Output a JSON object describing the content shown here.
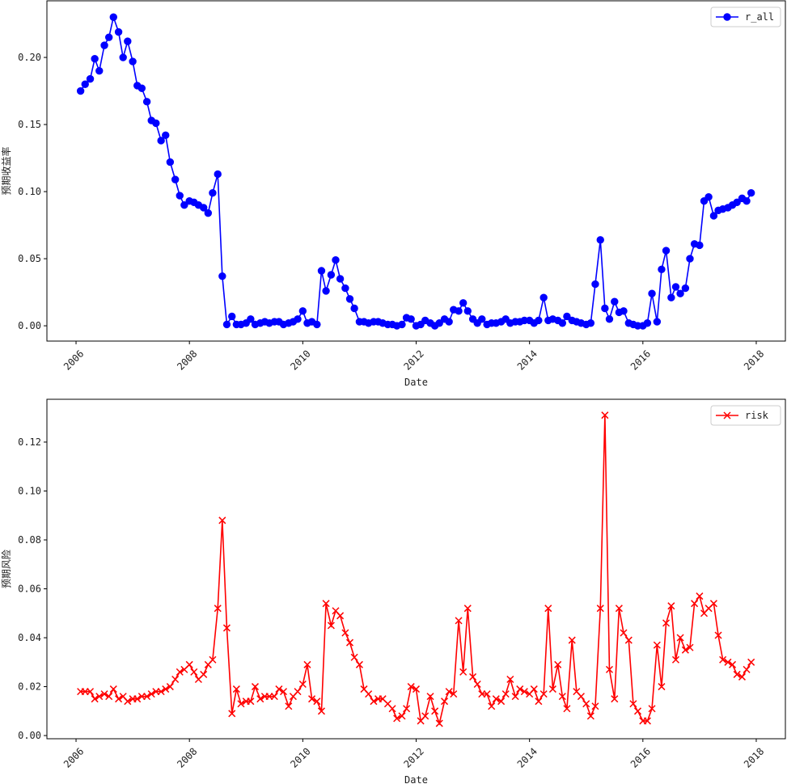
{
  "chart_data": [
    {
      "type": "line",
      "xlabel": "Date",
      "ylabel": "预期收益率",
      "legend": "upper right",
      "xlim": [
        2005.486,
        2018.514
      ],
      "ylim": [
        -0.0114,
        0.2422
      ],
      "xticks": [
        2006,
        2008,
        2010,
        2012,
        2014,
        2016,
        2018
      ],
      "yticks": [
        {
          "value": 0,
          "label": "0.00"
        },
        {
          "value": 0.05,
          "label": "0.05"
        },
        {
          "value": 0.1,
          "label": "0.10"
        },
        {
          "value": 0.15,
          "label": "0.15"
        },
        {
          "value": 0.2,
          "label": "0.20"
        }
      ],
      "x": [
        2006.08,
        2006.16,
        2006.25,
        2006.33,
        2006.41,
        2006.5,
        2006.58,
        2006.66,
        2006.75,
        2006.83,
        2006.91,
        2007,
        2007.08,
        2007.16,
        2007.25,
        2007.33,
        2007.41,
        2007.5,
        2007.58,
        2007.66,
        2007.75,
        2007.83,
        2007.91,
        2008,
        2008.08,
        2008.16,
        2008.25,
        2008.33,
        2008.41,
        2008.5,
        2008.58,
        2008.66,
        2008.75,
        2008.83,
        2008.91,
        2009,
        2009.08,
        2009.16,
        2009.25,
        2009.33,
        2009.41,
        2009.5,
        2009.58,
        2009.66,
        2009.75,
        2009.83,
        2009.91,
        2010,
        2010.08,
        2010.16,
        2010.25,
        2010.33,
        2010.41,
        2010.5,
        2010.58,
        2010.66,
        2010.75,
        2010.83,
        2010.91,
        2011,
        2011.08,
        2011.16,
        2011.25,
        2011.33,
        2011.41,
        2011.5,
        2011.58,
        2011.66,
        2011.75,
        2011.83,
        2011.91,
        2012,
        2012.08,
        2012.16,
        2012.25,
        2012.33,
        2012.41,
        2012.5,
        2012.58,
        2012.66,
        2012.75,
        2012.83,
        2012.91,
        2013,
        2013.08,
        2013.16,
        2013.25,
        2013.33,
        2013.41,
        2013.5,
        2013.58,
        2013.66,
        2013.75,
        2013.83,
        2013.91,
        2014,
        2014.08,
        2014.16,
        2014.25,
        2014.33,
        2014.41,
        2014.5,
        2014.58,
        2014.66,
        2014.75,
        2014.83,
        2014.91,
        2015,
        2015.08,
        2015.16,
        2015.25,
        2015.33,
        2015.41,
        2015.5,
        2015.58,
        2015.66,
        2015.75,
        2015.83,
        2015.91,
        2016,
        2016.08,
        2016.16,
        2016.25,
        2016.33,
        2016.41,
        2016.5,
        2016.58,
        2016.66,
        2016.75,
        2016.83,
        2016.91,
        2017,
        2017.08,
        2017.16,
        2017.25,
        2017.33,
        2017.41,
        2017.5,
        2017.58,
        2017.66,
        2017.75,
        2017.83,
        2017.91
      ],
      "series": [
        {
          "name": "r_all",
          "color": "#0000ff",
          "marker": "o",
          "values": [
            0.175,
            0.18,
            0.184,
            0.199,
            0.19,
            0.209,
            0.215,
            0.23,
            0.219,
            0.2,
            0.212,
            0.197,
            0.179,
            0.177,
            0.167,
            0.153,
            0.151,
            0.138,
            0.142,
            0.122,
            0.109,
            0.097,
            0.09,
            0.093,
            0.092,
            0.09,
            0.088,
            0.084,
            0.099,
            0.113,
            0.037,
            0.001,
            0.007,
            0.001,
            0.001,
            0.002,
            0.005,
            0.001,
            0.002,
            0.003,
            0.002,
            0.003,
            0.003,
            0.001,
            0.002,
            0.003,
            0.005,
            0.011,
            0.002,
            0.003,
            0.001,
            0.041,
            0.026,
            0.038,
            0.049,
            0.035,
            0.028,
            0.02,
            0.013,
            0.003,
            0.003,
            0.002,
            0.003,
            0.003,
            0.002,
            0.001,
            0.001,
            0.0,
            0.001,
            0.006,
            0.005,
            0.0,
            0.001,
            0.004,
            0.002,
            0.0,
            0.002,
            0.005,
            0.003,
            0.012,
            0.011,
            0.017,
            0.011,
            0.005,
            0.002,
            0.005,
            0.001,
            0.002,
            0.002,
            0.003,
            0.005,
            0.002,
            0.003,
            0.003,
            0.004,
            0.004,
            0.002,
            0.004,
            0.021,
            0.004,
            0.005,
            0.004,
            0.002,
            0.007,
            0.004,
            0.003,
            0.002,
            0.001,
            0.002,
            0.031,
            0.064,
            0.013,
            0.005,
            0.018,
            0.01,
            0.011,
            0.002,
            0.001,
            0.0,
            0.0,
            0.002,
            0.024,
            0.003,
            0.042,
            0.056,
            0.021,
            0.029,
            0.024,
            0.028,
            0.05,
            0.061,
            0.06,
            0.093,
            0.096,
            0.082,
            0.086,
            0.087,
            0.088,
            0.09,
            0.092,
            0.095,
            0.093,
            0.099
          ]
        }
      ]
    },
    {
      "type": "line",
      "xlabel": "Date",
      "ylabel": "预期风险",
      "legend": "upper right",
      "xlim": [
        2005.486,
        2018.514
      ],
      "ylim": [
        -0.0013,
        0.1375
      ],
      "xticks": [
        2006,
        2008,
        2010,
        2012,
        2014,
        2016,
        2018
      ],
      "yticks": [
        {
          "value": 0,
          "label": "0.00"
        },
        {
          "value": 0.02,
          "label": "0.02"
        },
        {
          "value": 0.04,
          "label": "0.04"
        },
        {
          "value": 0.06,
          "label": "0.06"
        },
        {
          "value": 0.08,
          "label": "0.08"
        },
        {
          "value": 0.1,
          "label": "0.10"
        },
        {
          "value": 0.12,
          "label": "0.12"
        }
      ],
      "x": [
        2006.08,
        2006.16,
        2006.25,
        2006.33,
        2006.41,
        2006.5,
        2006.58,
        2006.66,
        2006.75,
        2006.83,
        2006.91,
        2007,
        2007.08,
        2007.16,
        2007.25,
        2007.33,
        2007.41,
        2007.5,
        2007.58,
        2007.66,
        2007.75,
        2007.83,
        2007.91,
        2008,
        2008.08,
        2008.16,
        2008.25,
        2008.33,
        2008.41,
        2008.5,
        2008.58,
        2008.66,
        2008.75,
        2008.83,
        2008.91,
        2009,
        2009.08,
        2009.16,
        2009.25,
        2009.33,
        2009.41,
        2009.5,
        2009.58,
        2009.66,
        2009.75,
        2009.83,
        2009.91,
        2010,
        2010.08,
        2010.16,
        2010.25,
        2010.33,
        2010.41,
        2010.5,
        2010.58,
        2010.66,
        2010.75,
        2010.83,
        2010.91,
        2011,
        2011.08,
        2011.16,
        2011.25,
        2011.33,
        2011.41,
        2011.5,
        2011.58,
        2011.66,
        2011.75,
        2011.83,
        2011.91,
        2012,
        2012.08,
        2012.16,
        2012.25,
        2012.33,
        2012.41,
        2012.5,
        2012.58,
        2012.66,
        2012.75,
        2012.83,
        2012.91,
        2013,
        2013.08,
        2013.16,
        2013.25,
        2013.33,
        2013.41,
        2013.5,
        2013.58,
        2013.66,
        2013.75,
        2013.83,
        2013.91,
        2014,
        2014.08,
        2014.16,
        2014.25,
        2014.33,
        2014.41,
        2014.5,
        2014.58,
        2014.66,
        2014.75,
        2014.83,
        2014.91,
        2015,
        2015.08,
        2015.16,
        2015.25,
        2015.33,
        2015.41,
        2015.5,
        2015.58,
        2015.66,
        2015.75,
        2015.83,
        2015.91,
        2016,
        2016.08,
        2016.16,
        2016.25,
        2016.33,
        2016.41,
        2016.5,
        2016.58,
        2016.66,
        2016.75,
        2016.83,
        2016.91,
        2017,
        2017.08,
        2017.16,
        2017.25,
        2017.33,
        2017.41,
        2017.5,
        2017.58,
        2017.66,
        2017.75,
        2017.83,
        2017.91
      ],
      "series": [
        {
          "name": "risk",
          "color": "#ff0000",
          "marker": "x",
          "values": [
            0.018,
            0.018,
            0.018,
            0.015,
            0.016,
            0.017,
            0.016,
            0.019,
            0.015,
            0.016,
            0.014,
            0.015,
            0.015,
            0.016,
            0.016,
            0.017,
            0.018,
            0.018,
            0.019,
            0.02,
            0.023,
            0.026,
            0.027,
            0.029,
            0.026,
            0.023,
            0.025,
            0.029,
            0.031,
            0.052,
            0.088,
            0.044,
            0.009,
            0.019,
            0.013,
            0.014,
            0.014,
            0.02,
            0.015,
            0.016,
            0.016,
            0.016,
            0.019,
            0.018,
            0.012,
            0.016,
            0.018,
            0.021,
            0.029,
            0.015,
            0.014,
            0.01,
            0.054,
            0.045,
            0.051,
            0.049,
            0.042,
            0.038,
            0.032,
            0.029,
            0.019,
            0.017,
            0.014,
            0.015,
            0.015,
            0.013,
            0.011,
            0.007,
            0.008,
            0.011,
            0.02,
            0.019,
            0.006,
            0.008,
            0.016,
            0.01,
            0.005,
            0.014,
            0.018,
            0.017,
            0.047,
            0.026,
            0.052,
            0.024,
            0.021,
            0.017,
            0.017,
            0.012,
            0.015,
            0.014,
            0.017,
            0.023,
            0.016,
            0.019,
            0.018,
            0.017,
            0.019,
            0.014,
            0.017,
            0.052,
            0.019,
            0.029,
            0.016,
            0.011,
            0.039,
            0.018,
            0.016,
            0.013,
            0.008,
            0.012,
            0.052,
            0.131,
            0.027,
            0.015,
            0.052,
            0.042,
            0.039,
            0.013,
            0.01,
            0.006,
            0.006,
            0.011,
            0.037,
            0.02,
            0.046,
            0.053,
            0.031,
            0.04,
            0.035,
            0.036,
            0.054,
            0.057,
            0.05,
            0.052,
            0.054,
            0.041,
            0.031,
            0.03,
            0.029,
            0.025,
            0.024,
            0.027,
            0.03
          ]
        }
      ]
    }
  ]
}
